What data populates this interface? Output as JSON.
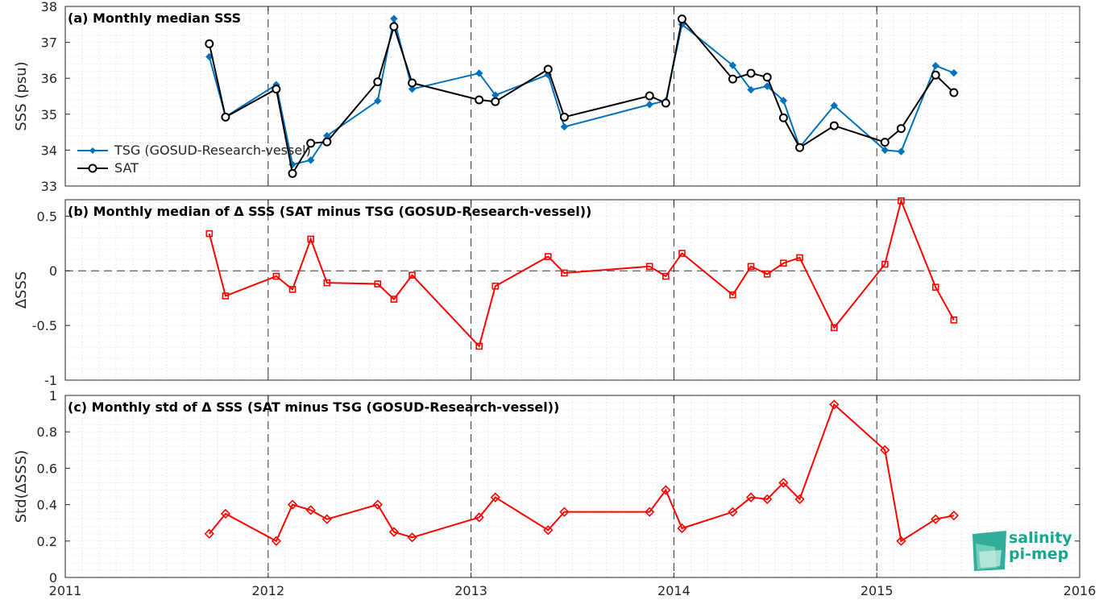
{
  "chart_data": [
    {
      "type": "line",
      "title": "(a) Monthly median SSS",
      "ylabel": "SSS (psu)",
      "xlim": [
        2011,
        2016
      ],
      "ylim": [
        33,
        38
      ],
      "yticks": [
        "33",
        "34",
        "35",
        "36",
        "37",
        "38"
      ],
      "legend": "bottom-left",
      "grid": true,
      "series": [
        {
          "name": "TSG (GOSUD-Research-vessel)",
          "color": "#0072bd",
          "marker": "dot",
          "x": [
            2011.71,
            2011.79,
            2012.04,
            2012.12,
            2012.21,
            2012.29,
            2012.54,
            2012.62,
            2012.71,
            2013.04,
            2013.12,
            2013.38,
            2013.46,
            2013.88,
            2013.96,
            2014.04,
            2014.29,
            2014.38,
            2014.46,
            2014.54,
            2014.62,
            2014.79,
            2015.04,
            2015.12,
            2015.29,
            2015.38
          ],
          "values": [
            36.6,
            34.93,
            35.82,
            33.6,
            33.72,
            34.4,
            35.37,
            37.66,
            35.7,
            36.14,
            35.53,
            36.1,
            34.65,
            35.27,
            35.37,
            37.5,
            36.36,
            35.68,
            35.78,
            35.38,
            34.08,
            35.24,
            34.0,
            33.96,
            36.35,
            36.15
          ]
        },
        {
          "name": "SAT",
          "color": "#000000",
          "marker": "circle",
          "x": [
            2011.71,
            2011.79,
            2012.04,
            2012.12,
            2012.21,
            2012.29,
            2012.54,
            2012.62,
            2012.71,
            2013.04,
            2013.12,
            2013.38,
            2013.46,
            2013.88,
            2013.96,
            2014.04,
            2014.29,
            2014.38,
            2014.46,
            2014.54,
            2014.62,
            2014.79,
            2015.04,
            2015.12,
            2015.29,
            2015.38
          ],
          "values": [
            36.96,
            34.92,
            35.7,
            33.35,
            34.19,
            34.23,
            35.9,
            37.44,
            35.87,
            35.4,
            35.35,
            36.25,
            34.92,
            35.51,
            35.31,
            37.65,
            35.98,
            36.14,
            36.03,
            34.9,
            34.07,
            34.68,
            34.22,
            34.6,
            36.09,
            35.6
          ]
        }
      ]
    },
    {
      "type": "line",
      "title": "(b) Monthly median of Δ SSS (SAT minus TSG (GOSUD-Research-vessel))",
      "ylabel": "ΔSSS",
      "xlim": [
        2011,
        2016
      ],
      "ylim": [
        -1,
        0.65
      ],
      "yticks": [
        "-1",
        "-0.5",
        "0",
        "0.5"
      ],
      "grid": true,
      "series": [
        {
          "color": "#ff0000",
          "marker": "square",
          "x": [
            2011.71,
            2011.79,
            2012.04,
            2012.12,
            2012.21,
            2012.29,
            2012.54,
            2012.62,
            2012.71,
            2013.04,
            2013.12,
            2013.38,
            2013.46,
            2013.88,
            2013.96,
            2014.04,
            2014.29,
            2014.38,
            2014.46,
            2014.54,
            2014.62,
            2014.79,
            2015.04,
            2015.12,
            2015.29,
            2015.38
          ],
          "values": [
            0.34,
            -0.23,
            -0.05,
            -0.17,
            0.29,
            -0.11,
            -0.12,
            -0.26,
            -0.04,
            -0.69,
            -0.14,
            0.13,
            -0.02,
            0.04,
            -0.05,
            0.16,
            -0.22,
            0.04,
            -0.03,
            0.07,
            0.12,
            -0.52,
            0.06,
            0.64,
            -0.15,
            -0.45
          ]
        }
      ]
    },
    {
      "type": "line",
      "title": "(c) Monthly std of Δ SSS (SAT minus TSG (GOSUD-Research-vessel))",
      "ylabel": "Std(ΔSSS)",
      "xlim": [
        2011,
        2016
      ],
      "ylim": [
        0,
        1
      ],
      "yticks": [
        "0",
        "0.2",
        "0.4",
        "0.6",
        "0.8",
        "1"
      ],
      "xticks": [
        "2011",
        "2012",
        "2013",
        "2014",
        "2015",
        "2016"
      ],
      "grid": true,
      "series": [
        {
          "color": "#ff0000",
          "marker": "diamond",
          "x": [
            2011.71,
            2011.79,
            2012.04,
            2012.12,
            2012.21,
            2012.29,
            2012.54,
            2012.62,
            2012.71,
            2013.04,
            2013.12,
            2013.38,
            2013.46,
            2013.88,
            2013.96,
            2014.04,
            2014.29,
            2014.38,
            2014.46,
            2014.54,
            2014.62,
            2014.79,
            2015.04,
            2015.12,
            2015.29,
            2015.38
          ],
          "values": [
            0.24,
            0.35,
            0.2,
            0.4,
            0.37,
            0.32,
            0.4,
            0.25,
            0.22,
            0.33,
            0.44,
            0.26,
            0.36,
            0.36,
            0.48,
            0.27,
            0.36,
            0.44,
            0.43,
            0.52,
            0.43,
            0.95,
            0.7,
            0.2,
            0.32,
            0.34
          ]
        }
      ]
    }
  ],
  "logo": {
    "line1": "salinity",
    "line2": "pi-mep",
    "color": "#1aa58e"
  }
}
